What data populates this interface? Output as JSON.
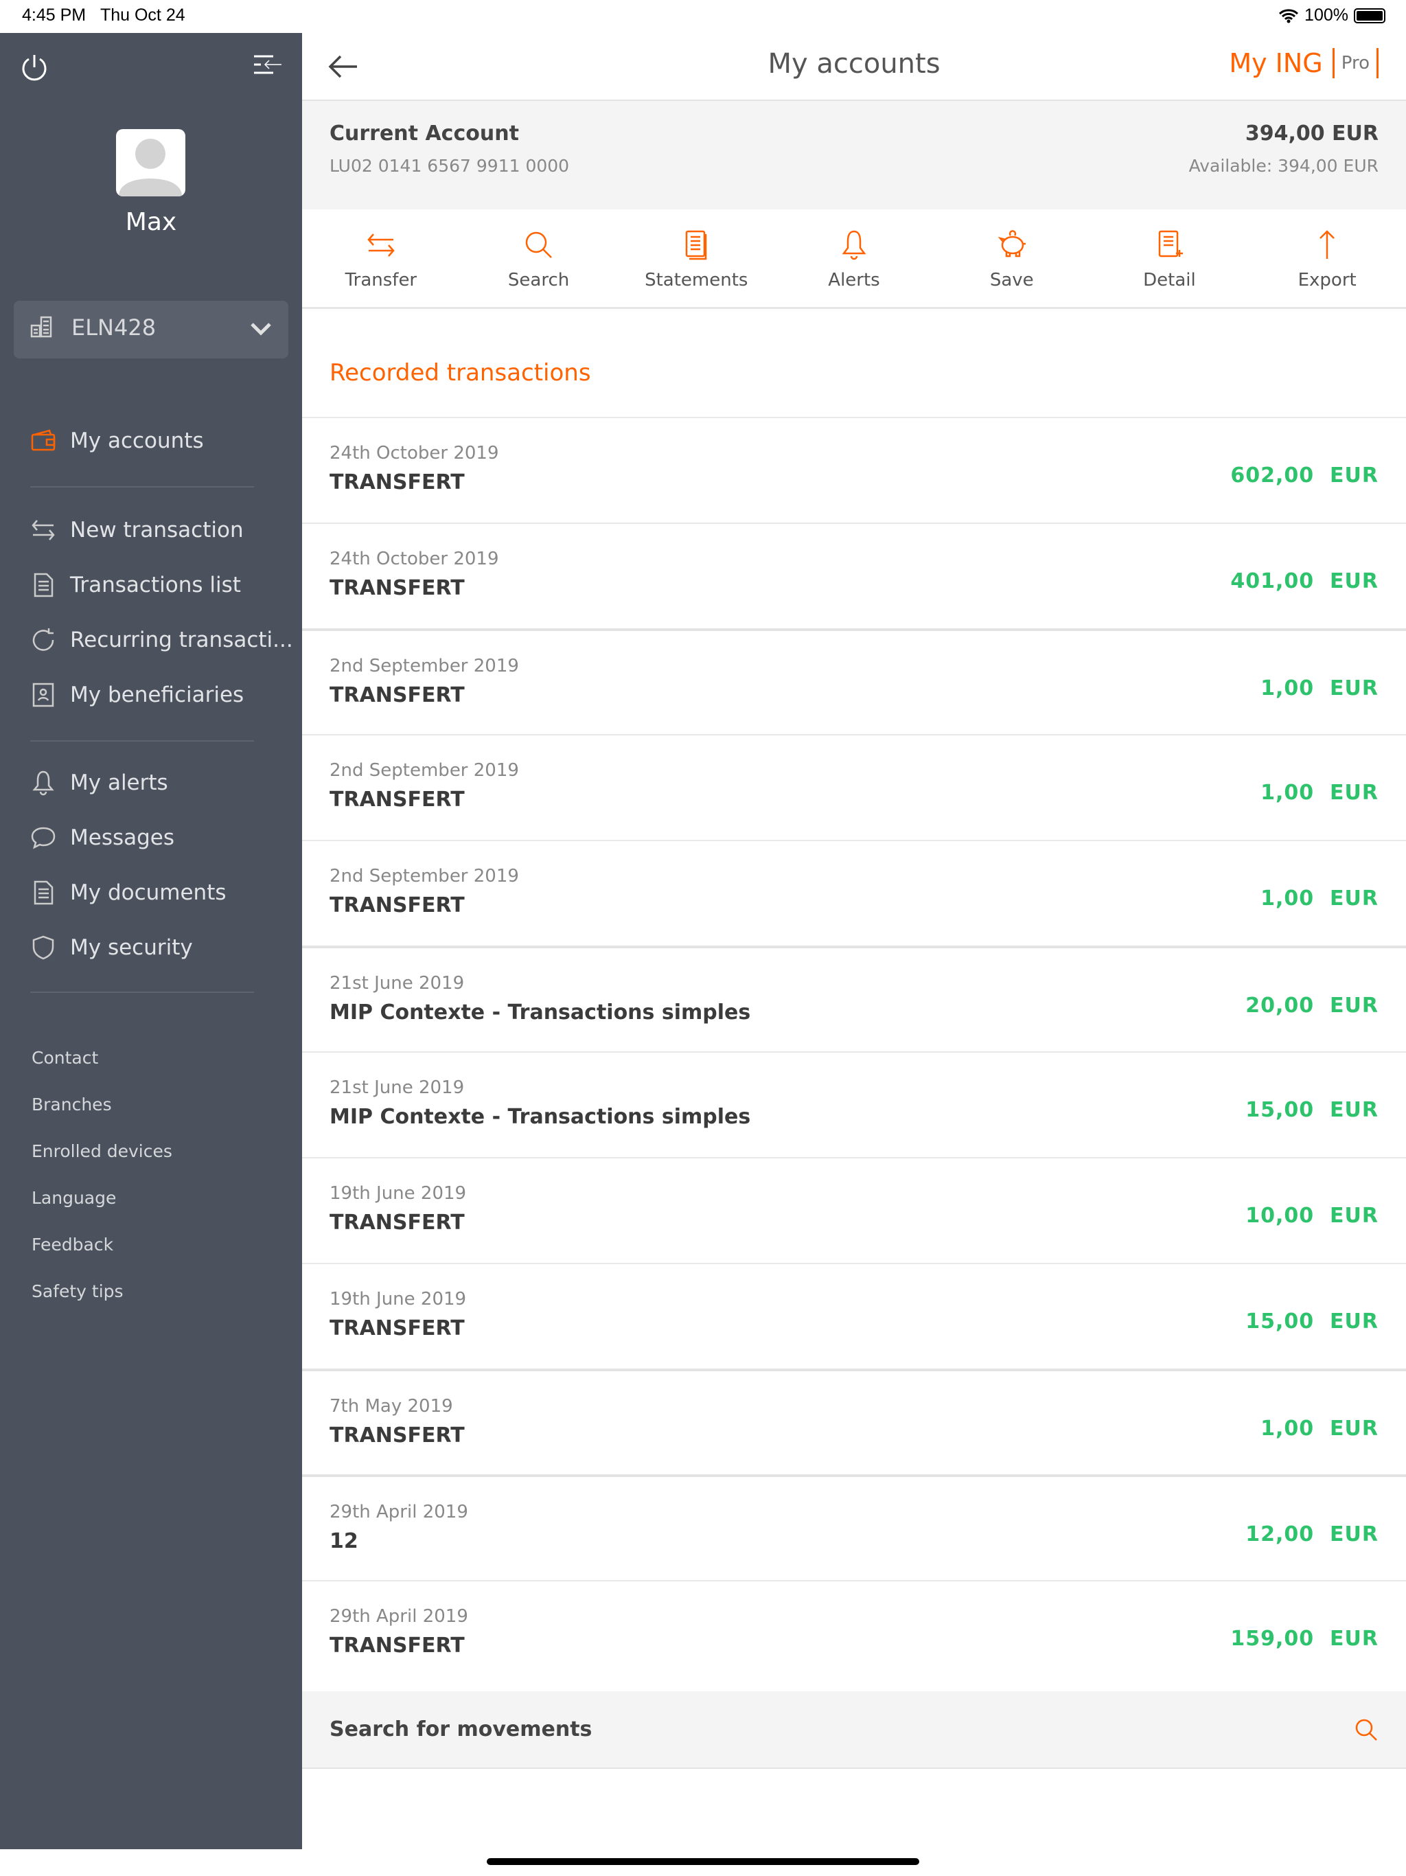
{
  "status_bar": {
    "time": "4:45 PM",
    "date": "Thu Oct 24",
    "battery": "100%"
  },
  "sidebar": {
    "user_name": "Max",
    "account_selector": "ELN428",
    "primary": [
      {
        "label": "My accounts",
        "icon": "wallet-icon",
        "active": true
      }
    ],
    "group1": [
      {
        "label": "New transaction",
        "icon": "transfer-icon"
      },
      {
        "label": "Transactions list",
        "icon": "document-icon"
      },
      {
        "label": "Recurring transacti...",
        "icon": "recurring-icon"
      },
      {
        "label": "My beneficiaries",
        "icon": "contacts-book-icon"
      }
    ],
    "group2": [
      {
        "label": "My alerts",
        "icon": "bell-icon"
      },
      {
        "label": "Messages",
        "icon": "chat-icon"
      },
      {
        "label": "My documents",
        "icon": "document-icon"
      },
      {
        "label": "My security",
        "icon": "shield-icon"
      }
    ],
    "links": [
      "Contact",
      "Branches",
      "Enrolled devices",
      "Language",
      "Feedback",
      "Safety tips"
    ]
  },
  "header": {
    "title": "My accounts",
    "brand": "My ING",
    "brand_badge": "Pro"
  },
  "account": {
    "name": "Current Account",
    "iban": "LU02 0141 6567 9911 0000",
    "balance": "394,00 EUR",
    "available": "Available: 394,00 EUR"
  },
  "actions": [
    {
      "label": "Transfer",
      "icon": "transfer-icon"
    },
    {
      "label": "Search",
      "icon": "search-icon"
    },
    {
      "label": "Statements",
      "icon": "statements-icon"
    },
    {
      "label": "Alerts",
      "icon": "bell-icon"
    },
    {
      "label": "Save",
      "icon": "piggy-bank-icon"
    },
    {
      "label": "Detail",
      "icon": "detail-icon"
    },
    {
      "label": "Export",
      "icon": "arrow-up-icon"
    }
  ],
  "section_title": "Recorded transactions",
  "transactions": [
    {
      "date": "24th October 2019",
      "title": "TRANSFERT",
      "amount": "602,00  EUR"
    },
    {
      "date": "24th October 2019",
      "title": "TRANSFERT",
      "amount": "401,00  EUR"
    },
    {
      "date": "2nd September 2019",
      "title": "TRANSFERT",
      "amount": "1,00  EUR"
    },
    {
      "date": "2nd September 2019",
      "title": "TRANSFERT",
      "amount": "1,00  EUR"
    },
    {
      "date": "2nd September 2019",
      "title": "TRANSFERT",
      "amount": "1,00  EUR"
    },
    {
      "date": "21st June 2019",
      "title": "MIP Contexte - Transactions simples",
      "amount": "20,00  EUR"
    },
    {
      "date": "21st June 2019",
      "title": "MIP Contexte - Transactions simples",
      "amount": "15,00  EUR"
    },
    {
      "date": "19th June 2019",
      "title": "TRANSFERT",
      "amount": "10,00  EUR"
    },
    {
      "date": "19th June 2019",
      "title": "TRANSFERT",
      "amount": "15,00  EUR"
    },
    {
      "date": "7th May 2019",
      "title": "TRANSFERT",
      "amount": "1,00  EUR"
    },
    {
      "date": "29th April 2019",
      "title": "12",
      "amount": "12,00  EUR"
    },
    {
      "date": "29th April 2019",
      "title": "TRANSFERT",
      "amount": "159,00  EUR"
    }
  ],
  "search_movements": "Search for movements",
  "colors": {
    "accent": "#ff6200",
    "positive": "#2dc26b",
    "sidebar": "#4b525d"
  }
}
